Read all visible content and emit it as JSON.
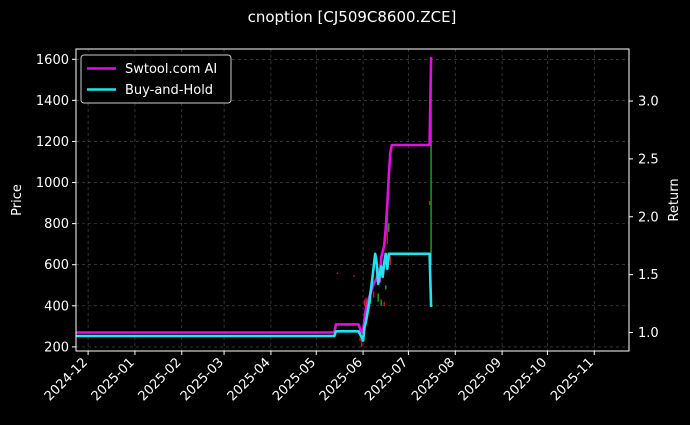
{
  "chart_data": {
    "type": "line",
    "title": "cnoption [CJ509C8600.ZCE]",
    "ylabel_left": "Price",
    "ylabel_right": "Return",
    "ylim_left": [
      180,
      1650
    ],
    "ylim_right": [
      0.84,
      3.45
    ],
    "yticks_left": [
      "200",
      "400",
      "600",
      "800",
      "1000",
      "1200",
      "1400",
      "1600"
    ],
    "yticks_right": [
      "1.0",
      "1.5",
      "2.0",
      "2.5",
      "3.0"
    ],
    "xlim": [
      "2024-11-23",
      "2025-11-24"
    ],
    "xticks": [
      "2024-12",
      "2025-01",
      "2025-02",
      "2025-03",
      "2025-04",
      "2025-05",
      "2025-06",
      "2025-07",
      "2025-08",
      "2025-09",
      "2025-10",
      "2025-11"
    ],
    "grid": true,
    "legend_position": "top-left",
    "series": [
      {
        "name": "Swtool.com AI",
        "color": "#e010e0",
        "axis": "right",
        "x": [
          "2024-11-23",
          "2025-05-13",
          "2025-05-14",
          "2025-05-29",
          "2025-05-31",
          "2025-06-01",
          "2025-06-02",
          "2025-06-03",
          "2025-06-05",
          "2025-06-08",
          "2025-06-10",
          "2025-06-11",
          "2025-06-12",
          "2025-06-13",
          "2025-06-15",
          "2025-06-16",
          "2025-06-17",
          "2025-06-18",
          "2025-06-19",
          "2025-06-20",
          "2025-07-15",
          "2025-07-16"
        ],
        "values": [
          1.0,
          1.0,
          1.07,
          1.07,
          1.0,
          1.02,
          1.12,
          1.22,
          1.3,
          1.42,
          1.47,
          1.55,
          1.44,
          1.65,
          1.75,
          1.9,
          2.1,
          2.35,
          2.55,
          2.62,
          2.62,
          3.38
        ]
      },
      {
        "name": "Buy-and-Hold",
        "color": "#22e4ee",
        "axis": "right",
        "x": [
          "2024-11-23",
          "2025-05-13",
          "2025-05-14",
          "2025-05-29",
          "2025-05-31",
          "2025-06-01",
          "2025-06-02",
          "2025-06-03",
          "2025-06-05",
          "2025-06-07",
          "2025-06-09",
          "2025-06-10",
          "2025-06-11",
          "2025-06-13",
          "2025-06-14",
          "2025-06-15",
          "2025-06-16",
          "2025-06-17",
          "2025-06-18",
          "2025-06-19",
          "2025-06-20",
          "2025-07-15",
          "2025-07-16"
        ],
        "values": [
          0.97,
          0.97,
          1.01,
          1.01,
          0.96,
          0.93,
          1.05,
          1.1,
          1.25,
          1.45,
          1.68,
          1.6,
          1.42,
          1.57,
          1.48,
          1.6,
          1.68,
          1.55,
          1.68,
          1.68,
          1.68,
          1.68,
          1.22
        ]
      }
    ],
    "candles": {
      "axis": "left",
      "up_color": "#1fa61f",
      "down_color": "#d01818",
      "items": [
        {
          "x": "2025-05-03",
          "low": 595,
          "high": 600,
          "dir": "down"
        },
        {
          "x": "2025-05-15",
          "low": 555,
          "high": 562,
          "dir": "down"
        },
        {
          "x": "2025-05-26",
          "low": 540,
          "high": 548,
          "dir": "down"
        },
        {
          "x": "2025-05-30",
          "low": 230,
          "high": 245,
          "dir": "down"
        },
        {
          "x": "2025-05-31",
          "low": 200,
          "high": 235,
          "dir": "down"
        },
        {
          "x": "2025-06-02",
          "low": 400,
          "high": 430,
          "dir": "down"
        },
        {
          "x": "2025-06-03",
          "low": 340,
          "high": 440,
          "dir": "down"
        },
        {
          "x": "2025-06-06",
          "low": 410,
          "high": 450,
          "dir": "up"
        },
        {
          "x": "2025-06-08",
          "low": 440,
          "high": 470,
          "dir": "down"
        },
        {
          "x": "2025-06-10",
          "low": 540,
          "high": 600,
          "dir": "down"
        },
        {
          "x": "2025-06-11",
          "low": 420,
          "high": 460,
          "dir": "up"
        },
        {
          "x": "2025-06-12",
          "low": 560,
          "high": 600,
          "dir": "down"
        },
        {
          "x": "2025-06-13",
          "low": 400,
          "high": 430,
          "dir": "up"
        },
        {
          "x": "2025-06-15",
          "low": 400,
          "high": 420,
          "dir": "down"
        },
        {
          "x": "2025-06-16",
          "low": 480,
          "high": 500,
          "dir": "up"
        },
        {
          "x": "2025-06-17",
          "low": 700,
          "high": 880,
          "dir": "down"
        },
        {
          "x": "2025-06-18",
          "low": 760,
          "high": 800,
          "dir": "up"
        },
        {
          "x": "2025-06-19",
          "low": 600,
          "high": 650,
          "dir": "down"
        },
        {
          "x": "2025-07-15",
          "low": 890,
          "high": 910,
          "dir": "down"
        },
        {
          "x": "2025-07-16",
          "low": 600,
          "high": 1590,
          "dir": "up"
        }
      ]
    }
  }
}
